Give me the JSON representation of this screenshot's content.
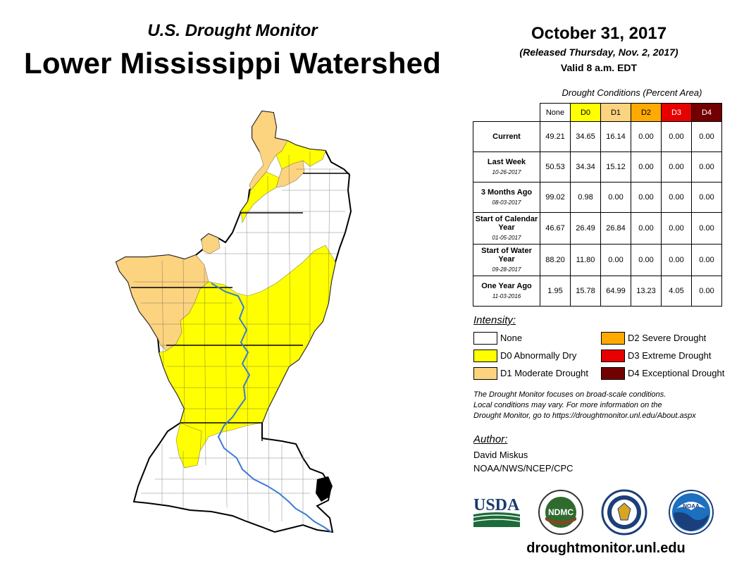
{
  "header": {
    "subtitle": "U.S. Drought Monitor",
    "title": "Lower Mississippi Watershed",
    "date": "October 31, 2017",
    "released": "(Released Thursday, Nov. 2, 2017)",
    "valid": "Valid 8 a.m. EDT"
  },
  "table": {
    "caption": "Drought Conditions (Percent Area)",
    "columns": [
      {
        "label": "None",
        "color": "#ffffff"
      },
      {
        "label": "D0",
        "color": "#ffff00"
      },
      {
        "label": "D1",
        "color": "#fcd37f"
      },
      {
        "label": "D2",
        "color": "#ffaa00"
      },
      {
        "label": "D3",
        "color": "#e60000"
      },
      {
        "label": "D4",
        "color": "#730000"
      }
    ],
    "rows": [
      {
        "label": "Current",
        "sub": "",
        "values": [
          "49.21",
          "34.65",
          "16.14",
          "0.00",
          "0.00",
          "0.00"
        ]
      },
      {
        "label": "Last Week",
        "sub": "10-26-2017",
        "values": [
          "50.53",
          "34.34",
          "15.12",
          "0.00",
          "0.00",
          "0.00"
        ]
      },
      {
        "label": "3 Months Ago",
        "sub": "08-03-2017",
        "values": [
          "99.02",
          "0.98",
          "0.00",
          "0.00",
          "0.00",
          "0.00"
        ]
      },
      {
        "label": "Start of Calendar Year",
        "sub": "01-05-2017",
        "values": [
          "46.67",
          "26.49",
          "26.84",
          "0.00",
          "0.00",
          "0.00"
        ]
      },
      {
        "label": "Start of Water Year",
        "sub": "09-28-2017",
        "values": [
          "88.20",
          "11.80",
          "0.00",
          "0.00",
          "0.00",
          "0.00"
        ]
      },
      {
        "label": "One Year Ago",
        "sub": "11-03-2016",
        "values": [
          "1.95",
          "15.78",
          "64.99",
          "13.23",
          "4.05",
          "0.00"
        ]
      }
    ]
  },
  "legend": {
    "title": "Intensity:",
    "items": [
      {
        "label": "None",
        "color": "#ffffff"
      },
      {
        "label": "D0 Abnormally Dry",
        "color": "#ffff00"
      },
      {
        "label": "D1 Moderate Drought",
        "color": "#fcd37f"
      },
      {
        "label": "D2 Severe Drought",
        "color": "#ffaa00"
      },
      {
        "label": "D3 Extreme Drought",
        "color": "#e60000"
      },
      {
        "label": "D4 Exceptional Drought",
        "color": "#730000"
      }
    ]
  },
  "note": {
    "line1": "The Drought Monitor focuses on broad-scale conditions.",
    "line2": "Local conditions may vary. For more information on the",
    "line3": "Drought Monitor, go to https://droughtmonitor.unl.edu/About.aspx"
  },
  "author": {
    "label": "Author:",
    "name": "David Miskus",
    "org": "NOAA/NWS/NCEP/CPC"
  },
  "logos": {
    "usda": "USDA",
    "ndmc": "NDMC",
    "noaa": "NOAA"
  },
  "website": "droughtmonitor.unl.edu",
  "colors": {
    "none": "#ffffff",
    "d0": "#ffff00",
    "d1": "#fcd37f",
    "river": "#3a7bd5"
  }
}
